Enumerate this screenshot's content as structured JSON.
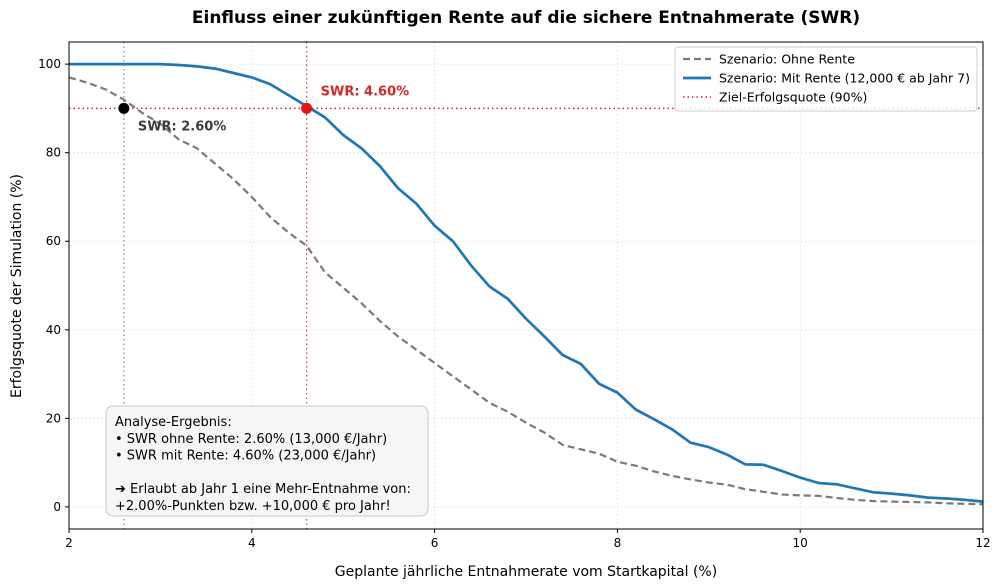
{
  "chart_data": {
    "type": "line",
    "title": "Einfluss einer zukünftigen Rente auf die sichere Entnahmerate (SWR)",
    "xlabel": "Geplante jährliche Entnahmerate vom Startkapital (%)",
    "ylabel": "Erfolgsquote der Simulation (%)",
    "xlim": [
      2,
      12
    ],
    "ylim": [
      -5,
      105
    ],
    "xticks": [
      2,
      4,
      6,
      8,
      10,
      12
    ],
    "yticks": [
      0,
      20,
      40,
      60,
      80,
      100
    ],
    "grid": true,
    "legend_placement": "top-right",
    "series": [
      {
        "name": "Szenario: Ohne Rente",
        "style": "dashed",
        "color": "#7a7a7a",
        "x": [
          2.0,
          2.2,
          2.4,
          2.6,
          2.8,
          3.0,
          3.2,
          3.4,
          3.6,
          3.8,
          4.0,
          4.2,
          4.4,
          4.6,
          4.8,
          5.0,
          5.2,
          5.4,
          5.6,
          5.8,
          6.0,
          6.2,
          6.4,
          6.6,
          6.8,
          7.0,
          7.2,
          7.4,
          7.6,
          7.8,
          8.0,
          8.2,
          8.4,
          8.6,
          8.8,
          9.0,
          9.2,
          9.4,
          9.6,
          9.8,
          10.0,
          10.2,
          10.4,
          10.6,
          10.8,
          11.0,
          11.2,
          11.4,
          11.6,
          11.8,
          12.0
        ],
        "y": [
          97,
          95.8,
          94.3,
          92,
          89,
          86.5,
          83,
          81,
          77.5,
          74,
          70,
          65.5,
          62,
          59,
          53,
          49.5,
          46,
          42,
          38.5,
          35.5,
          32.5,
          29.5,
          26.5,
          23.5,
          21.5,
          19,
          16.8,
          14,
          13,
          12,
          10.2,
          9.3,
          8,
          7,
          6.2,
          5.5,
          5,
          4,
          3.4,
          2.8,
          2.6,
          2.5,
          2,
          1.6,
          1.3,
          1.2,
          1.1,
          1,
          0.8,
          0.7,
          0.6
        ]
      },
      {
        "name": "Szenario: Mit Rente (12,000 € ab Jahr 7)",
        "style": "solid",
        "color": "#1f77b4",
        "x": [
          2.0,
          2.2,
          2.4,
          2.6,
          2.8,
          3.0,
          3.2,
          3.4,
          3.6,
          3.8,
          4.0,
          4.2,
          4.4,
          4.6,
          4.8,
          5.0,
          5.2,
          5.4,
          5.6,
          5.8,
          6.0,
          6.2,
          6.4,
          6.6,
          6.8,
          7.0,
          7.2,
          7.4,
          7.6,
          7.8,
          8.0,
          8.2,
          8.4,
          8.6,
          8.8,
          9.0,
          9.2,
          9.4,
          9.6,
          9.8,
          10.0,
          10.2,
          10.4,
          10.6,
          10.8,
          11.0,
          11.2,
          11.4,
          11.6,
          11.8,
          12.0
        ],
        "y": [
          100,
          100,
          100,
          100,
          100,
          100,
          99.8,
          99.5,
          99,
          98,
          97,
          95.5,
          93,
          90.5,
          88,
          84,
          81,
          77,
          72,
          68.5,
          63.5,
          60,
          54.5,
          49.8,
          47,
          42.5,
          38.5,
          34.3,
          32.3,
          27.8,
          25.8,
          22,
          19.8,
          17.5,
          14.5,
          13.5,
          11.8,
          9.6,
          9.5,
          8.1,
          6.6,
          5.4,
          5.1,
          4.2,
          3.3,
          3,
          2.6,
          2.1,
          1.9,
          1.6,
          1.2
        ]
      },
      {
        "name": "Ziel-Erfolgsquote (90%)",
        "style": "dotted",
        "color": "#d62728",
        "y_value": 90
      }
    ],
    "vlines": [
      {
        "x": 2.6,
        "color": "#7a7a7a"
      },
      {
        "x": 4.6,
        "color": "#d62728"
      }
    ],
    "markers": [
      {
        "x": 2.6,
        "y": 90,
        "color": "#000000",
        "label": "SWR: 2.60%",
        "label_color": "#3c3c3c"
      },
      {
        "x": 4.6,
        "y": 90,
        "color": "#e8101a",
        "label": "SWR: 4.60%",
        "label_color": "#d62728"
      }
    ],
    "annotation": {
      "lines": [
        "Analyse-Ergebnis:",
        "• SWR ohne Rente: 2.60% (13,000 €/Jahr)",
        "• SWR mit Rente: 4.60% (23,000 €/Jahr)",
        "",
        "➔ Erlaubt ab Jahr 1 eine Mehr-Entnahme von:",
        "  +2.00%-Punkten bzw. +10,000 € pro Jahr!"
      ]
    }
  }
}
